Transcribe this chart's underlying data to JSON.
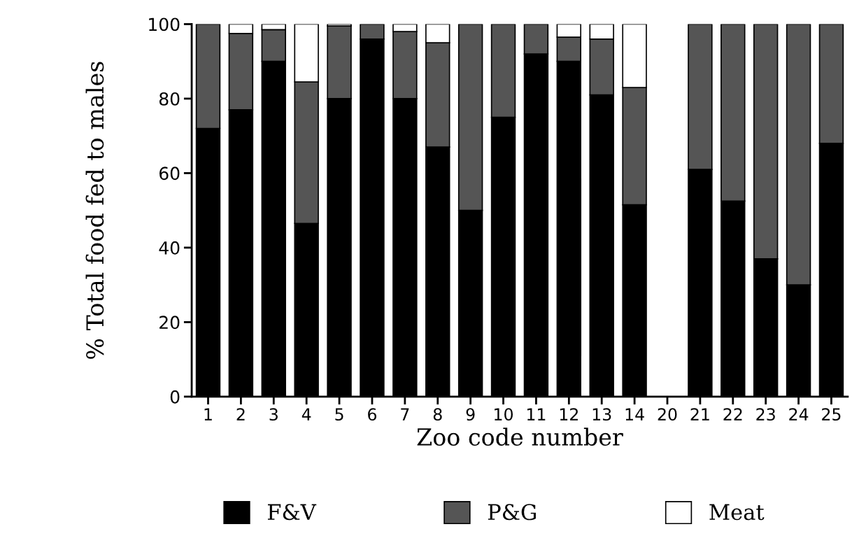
{
  "chart_data": {
    "type": "bar",
    "stacked": true,
    "xlabel": "Zoo code number",
    "ylabel": "% Total food fed to males",
    "categories": [
      "1",
      "2",
      "3",
      "4",
      "5",
      "6",
      "7",
      "8",
      "9",
      "10",
      "11",
      "12",
      "13",
      "14",
      "20",
      "21",
      "22",
      "23",
      "24",
      "25"
    ],
    "series": [
      {
        "name": "F&V",
        "color": "#000000",
        "values": [
          72,
          77,
          90,
          46.5,
          80,
          96,
          80,
          67,
          50,
          75,
          92,
          90,
          81,
          51.5,
          null,
          61,
          52.5,
          37,
          30,
          68
        ]
      },
      {
        "name": "P&G",
        "color": "#555555",
        "values": [
          28,
          20.5,
          8.5,
          38,
          19.5,
          4,
          18,
          28,
          50,
          25,
          8,
          6.5,
          15,
          31.5,
          null,
          39,
          47.5,
          63,
          70,
          32
        ]
      },
      {
        "name": "Meat",
        "color": "#ffffff",
        "values": [
          0,
          2.5,
          1.5,
          15.5,
          0.5,
          0,
          2,
          5,
          0,
          0,
          0,
          3.5,
          4,
          17,
          null,
          0,
          0,
          0,
          0,
          0
        ]
      }
    ],
    "ylim": [
      0,
      100
    ],
    "yticks": [
      0,
      20,
      40,
      60,
      80,
      100
    ],
    "grid": false,
    "legend": "bottom"
  }
}
